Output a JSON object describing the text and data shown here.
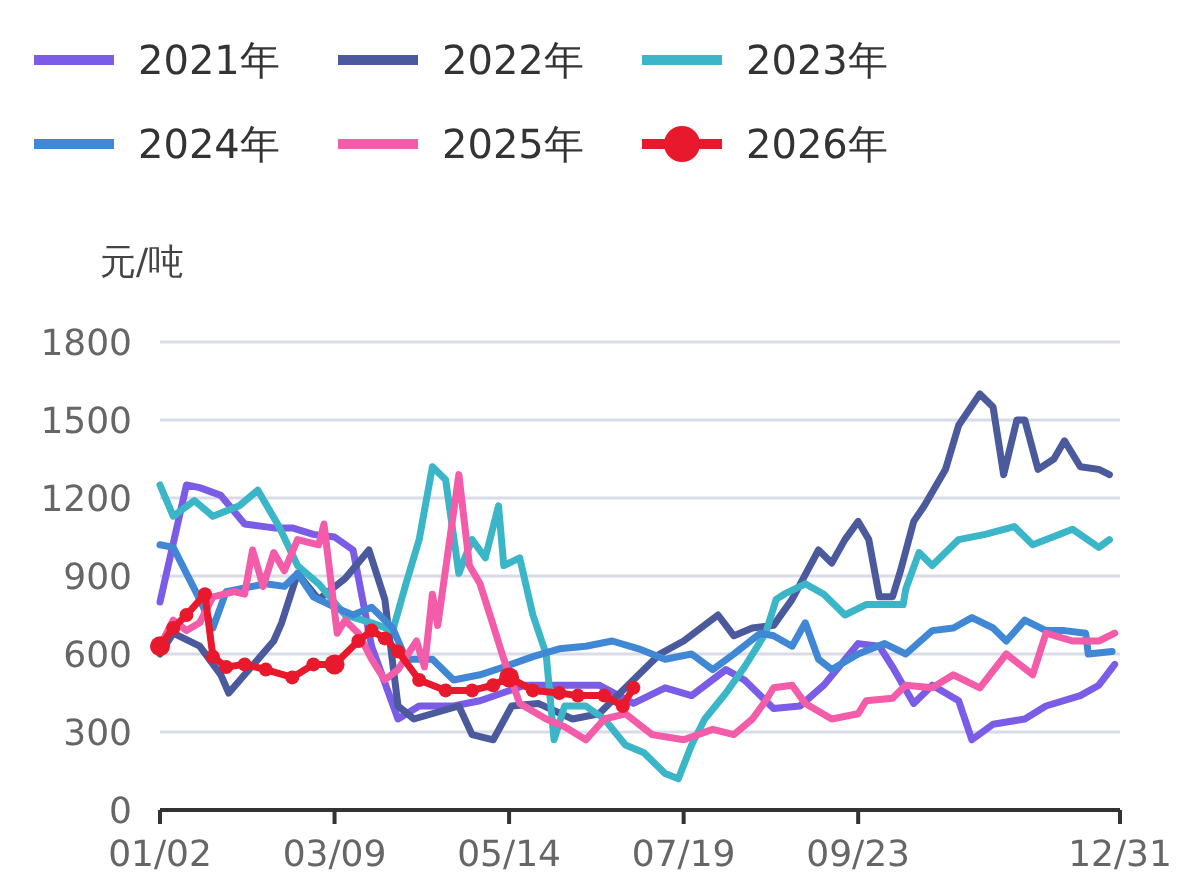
{
  "chart_data": {
    "type": "line",
    "ylabel": "元/吨",
    "legend": "top",
    "grid": "y",
    "line_style": "solid",
    "xlim": [
      "--01-02",
      "--12-31"
    ],
    "xticks": [
      {
        "value": "--01-02",
        "label": "01/02"
      },
      {
        "value": "--03-09",
        "label": "03/09"
      },
      {
        "value": "--05-14",
        "label": "05/14"
      },
      {
        "value": "--07-19",
        "label": "07/19"
      },
      {
        "value": "--09-23",
        "label": "09/23"
      },
      {
        "value": "--12-31",
        "label": "12/31"
      }
    ],
    "ylim": [
      0,
      1800
    ],
    "yticks": [
      0,
      300,
      600,
      900,
      1200,
      1500,
      1800
    ],
    "series": [
      {
        "name": "2021年",
        "color": "#7a5ce6",
        "marker": "none",
        "x": [
          "--01-02",
          "--01-12",
          "--01-17",
          "--01-25",
          "--02-03",
          "--02-14",
          "--02-21",
          "--03-01",
          "--03-09",
          "--03-16",
          "--03-23",
          "--04-02",
          "--04-10",
          "--04-23",
          "--05-03",
          "--05-20",
          "--06-17",
          "--06-30",
          "--07-12",
          "--07-22",
          "--08-04",
          "--08-11",
          "--08-22",
          "--09-01",
          "--09-10",
          "--09-23",
          "--10-01",
          "--10-06",
          "--10-14",
          "--10-21",
          "--10-31",
          "--11-05",
          "--11-13",
          "--11-25",
          "--12-03",
          "--12-16",
          "--12-23",
          "--12-29"
        ],
        "values": [
          800,
          1250,
          1240,
          1210,
          1100,
          1085,
          1085,
          1060,
          1050,
          1000,
          630,
          350,
          400,
          400,
          420,
          480,
          480,
          410,
          470,
          440,
          540,
          500,
          390,
          400,
          480,
          640,
          630,
          550,
          410,
          480,
          420,
          270,
          330,
          350,
          400,
          440,
          480,
          560
        ]
      },
      {
        "name": "2022年",
        "color": "#4a5a9c",
        "marker": "none",
        "x": [
          "--01-02",
          "--01-07",
          "--01-17",
          "--01-25",
          "--01-28",
          "--02-14",
          "--02-17",
          "--02-23",
          "--03-03",
          "--03-13",
          "--03-22",
          "--03-28",
          "--04-02",
          "--04-08",
          "--04-25",
          "--04-30",
          "--05-08",
          "--05-15",
          "--05-25",
          "--06-07",
          "--06-17",
          "--07-02",
          "--07-10",
          "--07-19",
          "--08-01",
          "--08-07",
          "--08-14",
          "--08-22",
          "--08-29",
          "--09-08",
          "--09-13",
          "--09-18",
          "--09-23",
          "--09-27",
          "--10-01",
          "--10-06",
          "--10-09",
          "--10-14",
          "--10-18",
          "--10-26",
          "--10-31",
          "--11-08",
          "--11-13",
          "--11-17",
          "--11-22",
          "--11-25",
          "--11-30",
          "--12-06",
          "--12-10",
          "--12-16",
          "--12-23",
          "--12-27"
        ],
        "values": [
          600,
          680,
          630,
          520,
          450,
          650,
          720,
          910,
          810,
          890,
          1000,
          810,
          400,
          350,
          400,
          290,
          270,
          400,
          410,
          350,
          370,
          520,
          600,
          650,
          750,
          670,
          700,
          710,
          810,
          1000,
          950,
          1040,
          1110,
          1040,
          820,
          820,
          920,
          1110,
          1170,
          1310,
          1480,
          1600,
          1550,
          1290,
          1500,
          1500,
          1310,
          1350,
          1420,
          1320,
          1310,
          1290
        ]
      },
      {
        "name": "2023年",
        "color": "#3bb5c8",
        "marker": "none",
        "x": [
          "--01-02",
          "--01-07",
          "--01-15",
          "--01-22",
          "--02-01",
          "--02-08",
          "--02-16",
          "--02-23",
          "--03-03",
          "--03-13",
          "--03-23",
          "--03-31",
          "--04-05",
          "--04-10",
          "--04-15",
          "--04-20",
          "--04-25",
          "--04-30",
          "--05-05",
          "--05-10",
          "--05-12",
          "--05-18",
          "--05-23",
          "--05-28",
          "--05-31",
          "--06-04",
          "--06-12",
          "--06-19",
          "--06-27",
          "--07-04",
          "--07-12",
          "--07-17",
          "--07-22",
          "--07-27",
          "--08-04",
          "--08-11",
          "--08-19",
          "--08-23",
          "--08-26",
          "--09-03",
          "--09-10",
          "--09-18",
          "--09-26",
          "--10-10",
          "--10-11",
          "--10-16",
          "--10-21",
          "--10-31",
          "--11-10",
          "--11-21",
          "--11-28",
          "--12-08",
          "--12-13",
          "--12-23",
          "--12-27"
        ],
        "values": [
          1250,
          1130,
          1190,
          1130,
          1170,
          1230,
          1090,
          940,
          870,
          750,
          720,
          690,
          870,
          1040,
          1320,
          1270,
          910,
          1040,
          970,
          1170,
          940,
          970,
          750,
          600,
          270,
          400,
          400,
          350,
          250,
          220,
          140,
          120,
          250,
          350,
          450,
          550,
          680,
          810,
          830,
          870,
          830,
          750,
          790,
          790,
          850,
          990,
          940,
          1040,
          1060,
          1090,
          1020,
          1060,
          1080,
          1010,
          1040
        ]
      },
      {
        "name": "2024年",
        "color": "#4088d6",
        "marker": "none",
        "x": [
          "--01-02",
          "--01-07",
          "--01-12",
          "--01-17",
          "--01-22",
          "--01-27",
          "--02-06",
          "--02-11",
          "--02-18",
          "--02-23",
          "--03-01",
          "--03-09",
          "--03-16",
          "--03-23",
          "--03-31",
          "--04-05",
          "--04-15",
          "--04-23",
          "--05-03",
          "--05-12",
          "--05-23",
          "--06-02",
          "--06-12",
          "--06-22",
          "--07-02",
          "--07-12",
          "--07-22",
          "--07-30",
          "--08-07",
          "--08-17",
          "--08-22",
          "--08-29",
          "--09-03",
          "--09-08",
          "--09-13",
          "--09-23",
          "--10-03",
          "--10-11",
          "--10-21",
          "--10-29",
          "--11-05",
          "--11-13",
          "--11-18",
          "--11-25",
          "--12-03",
          "--12-10",
          "--12-18",
          "--12-19",
          "--12-28"
        ],
        "values": [
          1020,
          1010,
          910,
          810,
          700,
          840,
          860,
          870,
          860,
          910,
          820,
          780,
          750,
          780,
          700,
          580,
          580,
          500,
          520,
          550,
          590,
          620,
          630,
          650,
          620,
          580,
          600,
          540,
          600,
          680,
          670,
          630,
          720,
          580,
          540,
          600,
          640,
          600,
          690,
          700,
          740,
          700,
          650,
          730,
          690,
          690,
          680,
          600,
          610
        ]
      },
      {
        "name": "2025年",
        "color": "#f25ca8",
        "marker": "none",
        "x": [
          "--01-02",
          "--01-07",
          "--01-12",
          "--01-17",
          "--01-22",
          "--01-30",
          "--02-03",
          "--02-06",
          "--02-10",
          "--02-14",
          "--02-18",
          "--02-23",
          "--03-03",
          "--03-05",
          "--03-10",
          "--03-13",
          "--03-18",
          "--03-23",
          "--03-28",
          "--04-02",
          "--04-09",
          "--04-12",
          "--04-15",
          "--04-17",
          "--04-25",
          "--04-29",
          "--05-03",
          "--05-08",
          "--05-12",
          "--05-18",
          "--05-28",
          "--06-04",
          "--06-12",
          "--06-19",
          "--06-27",
          "--07-07",
          "--07-19",
          "--07-30",
          "--08-07",
          "--08-14",
          "--08-19",
          "--08-22",
          "--08-29",
          "--09-03",
          "--09-13",
          "--09-23",
          "--09-26",
          "--10-06",
          "--10-11",
          "--10-21",
          "--10-29",
          "--11-08",
          "--11-18",
          "--11-28",
          "--12-03",
          "--12-13",
          "--12-23",
          "--12-29"
        ],
        "values": [
          630,
          730,
          690,
          720,
          820,
          840,
          830,
          1000,
          860,
          990,
          920,
          1040,
          1020,
          1100,
          680,
          730,
          680,
          580,
          500,
          540,
          650,
          550,
          830,
          710,
          1290,
          940,
          870,
          710,
          580,
          410,
          350,
          320,
          270,
          350,
          370,
          290,
          270,
          310,
          290,
          350,
          420,
          470,
          480,
          410,
          350,
          370,
          420,
          430,
          480,
          470,
          520,
          470,
          600,
          520,
          680,
          650,
          650,
          680
        ]
      },
      {
        "name": "2026年",
        "color": "#e8192c",
        "marker": "circle",
        "x": [
          "--01-02",
          "--01-07",
          "--01-12",
          "--01-19",
          "--01-22",
          "--01-27",
          "--02-03",
          "--02-11",
          "--02-21",
          "--03-01",
          "--03-09",
          "--03-18",
          "--03-23",
          "--03-28",
          "--04-02",
          "--04-10",
          "--04-20",
          "--04-30",
          "--05-08",
          "--05-14",
          "--05-23",
          "--06-02",
          "--06-09",
          "--06-19",
          "--06-26",
          "--06-30"
        ],
        "values": [
          630,
          700,
          750,
          830,
          590,
          550,
          560,
          540,
          510,
          560,
          560,
          650,
          690,
          660,
          610,
          500,
          460,
          460,
          480,
          510,
          460,
          450,
          440,
          440,
          400,
          470
        ]
      }
    ]
  }
}
